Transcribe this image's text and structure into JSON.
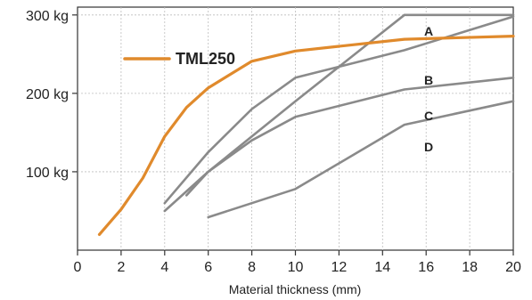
{
  "chart_data": {
    "type": "line",
    "title": "",
    "xlabel": "Material thickness (mm)",
    "ylabel": "",
    "xlim": [
      0,
      20
    ],
    "ylim": [
      0,
      310
    ],
    "x_ticks": [
      0,
      2,
      4,
      6,
      8,
      10,
      12,
      14,
      16,
      18,
      20
    ],
    "x_tick_labels": [
      "0",
      "2",
      "4",
      "6",
      "8",
      "10",
      "12",
      "14",
      "16",
      "18",
      "20"
    ],
    "y_ticks": [
      100,
      200,
      300
    ],
    "y_tick_labels": [
      "100 kg",
      "200 kg",
      "300 kg"
    ],
    "grid": true,
    "legend_position": "top-left",
    "series": [
      {
        "name": "TML250",
        "color": "#e08a2c",
        "points": [
          [
            1,
            20
          ],
          [
            2,
            52
          ],
          [
            3,
            92
          ],
          [
            4,
            145
          ],
          [
            5,
            182
          ],
          [
            6,
            207
          ],
          [
            8,
            241
          ],
          [
            10,
            254
          ],
          [
            12,
            260
          ],
          [
            15,
            269
          ],
          [
            20,
            273
          ]
        ]
      },
      {
        "name": "A",
        "color": "#8a8a8a",
        "points": [
          [
            4,
            50
          ],
          [
            6,
            100
          ],
          [
            8,
            145
          ],
          [
            10,
            190
          ],
          [
            15,
            300
          ],
          [
            20,
            300
          ]
        ]
      },
      {
        "name": "B",
        "color": "#8a8a8a",
        "points": [
          [
            4,
            60
          ],
          [
            6,
            125
          ],
          [
            8,
            180
          ],
          [
            10,
            220
          ],
          [
            15,
            255
          ],
          [
            20,
            298
          ]
        ]
      },
      {
        "name": "C",
        "color": "#8a8a8a",
        "points": [
          [
            5,
            70
          ],
          [
            6,
            100
          ],
          [
            8,
            140
          ],
          [
            10,
            170
          ],
          [
            15,
            205
          ],
          [
            20,
            220
          ]
        ]
      },
      {
        "name": "D",
        "color": "#8a8a8a",
        "points": [
          [
            6,
            42
          ],
          [
            8,
            60
          ],
          [
            10,
            78
          ],
          [
            15,
            160
          ],
          [
            20,
            190
          ]
        ]
      }
    ],
    "annotations": [
      "A",
      "B",
      "C",
      "D"
    ]
  }
}
